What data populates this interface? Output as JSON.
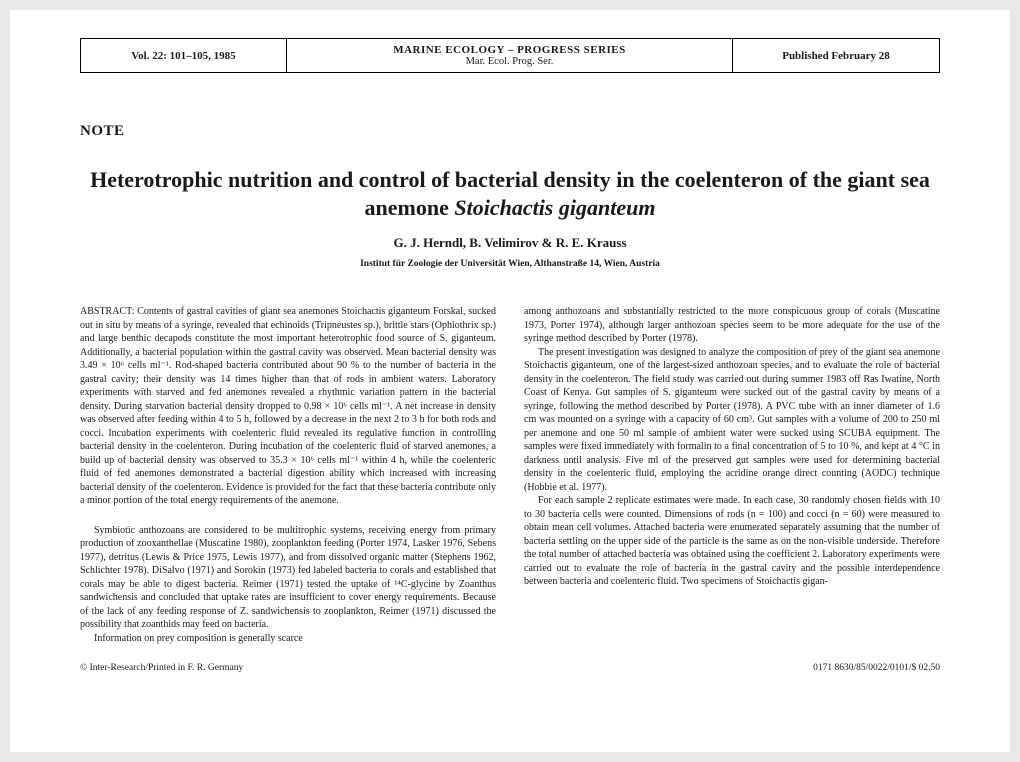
{
  "masthead": {
    "volume": "Vol. 22: 101–105, 1985",
    "series_line1": "MARINE ECOLOGY – PROGRESS SERIES",
    "series_line2": "Mar. Ecol. Prog. Ser.",
    "published": "Published February 28"
  },
  "note_label": "NOTE",
  "title_part1": "Heterotrophic nutrition and control of bacterial density in the coelenteron of the giant sea anemone ",
  "title_species": "Stoichactis giganteum",
  "authors": "G. J. Herndl, B. Velimirov & R. E. Krauss",
  "affiliation": "Institut für Zoologie der Universität Wien, Althanstraße 14, Wien, Austria",
  "abstract_label": "ABSTRACT: ",
  "abstract_body": "Contents of gastral cavities of giant sea anemones Stoichactis giganteum Forskal, sucked out in situ by means of a syringe, revealed that echinoids (Tripneustes sp.), brittle stars (Ophiothrix sp.) and large benthic decapods constitute the most important heterotrophic food source of S. giganteum. Additionally, a bacterial population within the gastral cavity was observed. Mean bacterial density was 3.49 × 10⁶ cells ml⁻¹. Rod-shaped bacteria contributed about 90 % to the number of bacteria in the gastral cavity; their density was 14 times higher than that of rods in ambient waters. Laboratory experiments with starved and fed anemones revealed a rhythmic variation pattern in the bacterial density. During starvation bacterial density dropped to 0.98 × 10⁶ cells ml⁻¹. A net increase in density was observed after feeding within 4 to 5 h, followed by a decrease in the next 2 to 3 h for both rods and cocci. Incubation experiments with coelenteric fluid revealed its regulative function in controlling bacterial density in the coelenteron. During incubation of the coelenteric fluid of starved anemones, a build up of bacterial density was observed to 35.3 × 10⁶ cells ml⁻¹ within 4 h, while the coelenteric fluid of fed anemones demonstrated a bacterial digestion ability which increased with increasing bacterial density of the coelenteron. Evidence is provided for the fact that these bacteria contribute only a minor portion of the total energy requirements of the anemone.",
  "left_p1": "Symbiotic anthozoans are considered to be multitrophic systems, receiving energy from primary production of zooxanthellae (Muscatine 1980), zooplankton feeding (Porter 1974, Lasker 1976, Sebens 1977), detritus (Lewis & Price 1975, Lewis 1977), and from dissolved organic matter (Stephens 1962, Schlichter 1978). DiSalvo (1971) and Sorokin (1973) fed labeled bacteria to corals and established that corals may be able to digest bacteria. Reimer (1971) tested the uptake of ¹⁴C-glycine by Zoanthus sandwichensis and concluded that uptake rates are insufficient to cover energy requirements. Because of the lack of any feeding response of Z. sandwichensis to zooplankton, Reimer (1971) discussed the possibility that zoanthids may feed on bacteria.",
  "left_p2": "Information on prey composition is generally scarce",
  "right_p1": "among anthozoans and substantially restricted to the more conspicuous group of corals (Muscatine 1973, Porter 1974), although larger anthozoan species seem to be more adequate for the use of the syringe method described by Porter (1978).",
  "right_p2": "The present investigation was designed to analyze the composition of prey of the giant sea anemone Stoichactis giganteum, one of the largest-sized anthozoan species, and to evaluate the role of bacterial density in the coelenteron. The field study was carried out during summer 1983 off Ras Iwatine, North Coast of Kenya. Gut samples of S. giganteum were sucked out of the gastral cavity by means of a syringe, following the method described by Porter (1978). A PVC tube with an inner diameter of 1.6 cm was mounted on a syringe with a capacity of 60 cm³. Gut samples with a volume of 200 to 250 ml per anemone and one 50 ml sample of ambient water were sucked using SCUBA equipment. The samples were fixed immediately with formalin to a final concentration of 5 to 10 %, and kept at 4 °C in darkness until analysis. Five ml of the preserved gut samples were used for determining bacterial density in the coelenteric fluid, employing the acridine orange direct counting (AODC) technique (Hobbie et al. 1977).",
  "right_p3": "For each sample 2 replicate estimates were made. In each case, 30 randomly chosen fields with 10 to 30 bacteria cells were counted. Dimensions of rods (n = 100) and cocci (n = 60) were measured to obtain mean cell volumes. Attached bacteria were enumerated separately assuming that the number of bacteria settling on the upper side of the particle is the same as on the non-visible underside. Therefore the total number of attached bacteria was obtained using the coefficient 2. Laboratory experiments were carried out to evaluate the role of bacteria in the gastral cavity and the possible interdependence between bacteria and coelenteric fluid. Two specimens of Stoichactis gigan-",
  "footer_left": "© Inter-Research/Printed in F. R. Germany",
  "footer_right": "0171 8630/85/0022/0101/$ 02.50",
  "colors": {
    "page_bg": "#ffffff",
    "body_bg": "#e8e8e8",
    "text": "#1a1a1a",
    "border": "#000000"
  }
}
